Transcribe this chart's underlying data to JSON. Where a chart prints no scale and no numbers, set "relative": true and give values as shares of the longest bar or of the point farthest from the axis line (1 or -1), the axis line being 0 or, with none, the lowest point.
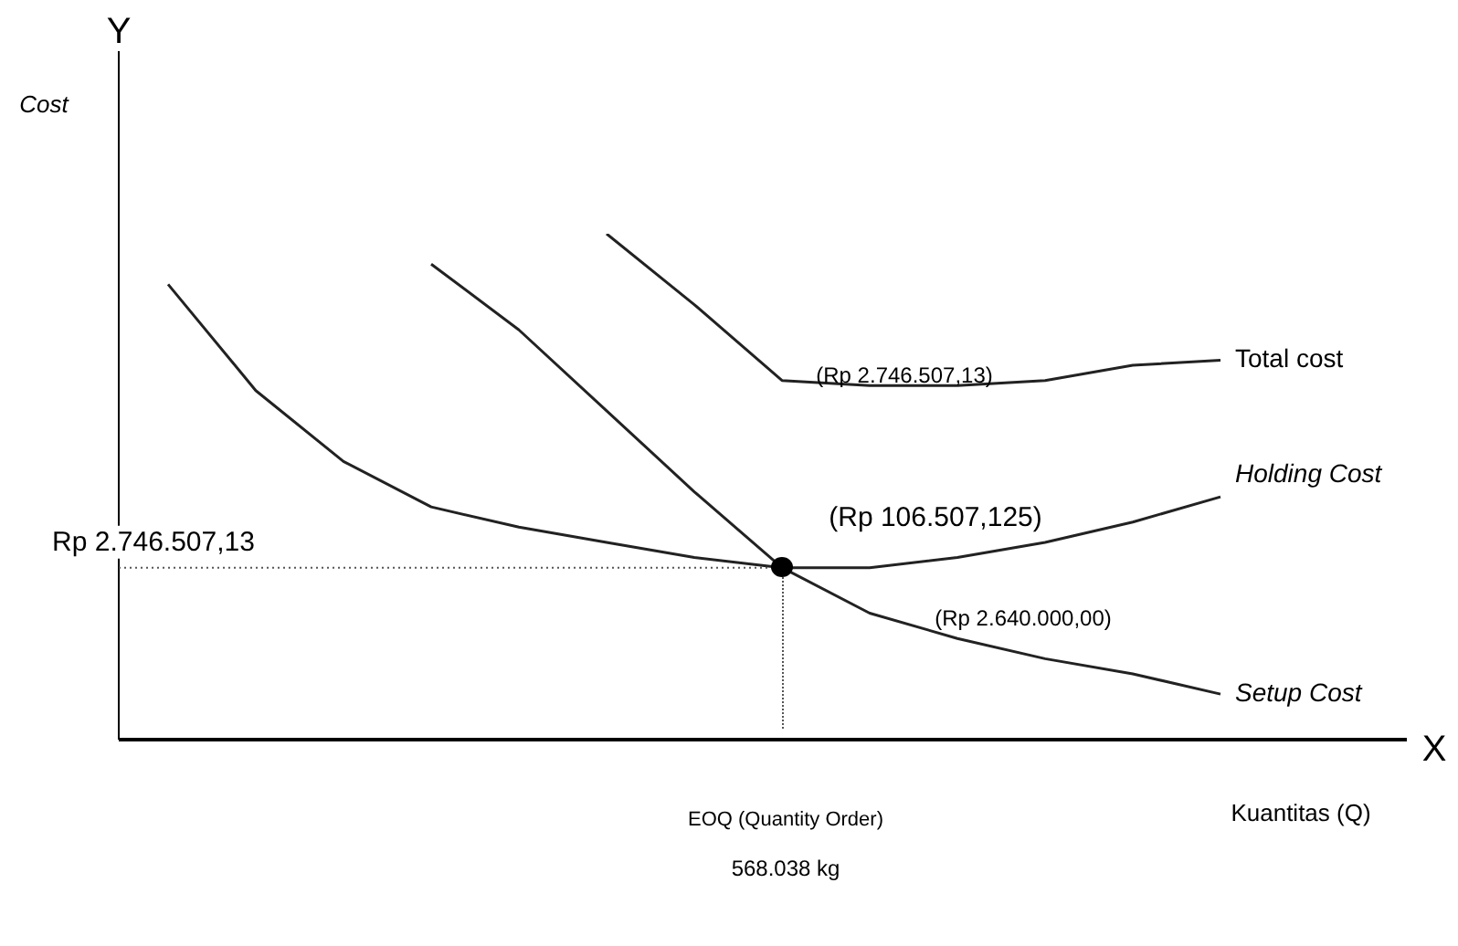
{
  "chart_data": {
    "type": "line",
    "relative": true,
    "xlabel": "Kuantitas (Q)",
    "tick_labels": false,
    "legend": false,
    "marker": "none",
    "categories": [
      null,
      null,
      null,
      null,
      null,
      null,
      null,
      null,
      null,
      null,
      null,
      null,
      null
    ],
    "series": [
      {
        "name": "Total cost",
        "color": "#222222",
        "values": [
          null,
          null,
          null,
          null,
          null,
          1,
          0.86,
          0.71,
          0.7,
          0.7,
          0.71,
          0.74,
          0.75
        ]
      },
      {
        "name": "Holding Cost",
        "color": "#222222",
        "values": [
          0.9,
          0.69,
          0.55,
          0.46,
          0.42,
          0.39,
          0.36,
          0.34,
          0.34,
          0.36,
          0.39,
          0.43,
          0.48
        ]
      },
      {
        "name": "Setup Cost",
        "color": "#222222",
        "values": [
          null,
          null,
          null,
          0.94,
          0.81,
          0.65,
          0.49,
          0.34,
          0.25,
          0.2,
          0.16,
          0.13,
          0.09
        ]
      }
    ],
    "ref_lines": [
      {
        "axis": "y",
        "value": 0.34,
        "label": "Rp 2.746.507,13",
        "line_style": "dotted"
      }
    ],
    "annotations": [
      "Y",
      "X",
      "(Rp 2.746.507,13)",
      "(Rp 106.507,125)",
      "(Rp 2.640.000,00)",
      "EOQ (Quantity Order)",
      "568.038 kg",
      "Cost"
    ]
  }
}
